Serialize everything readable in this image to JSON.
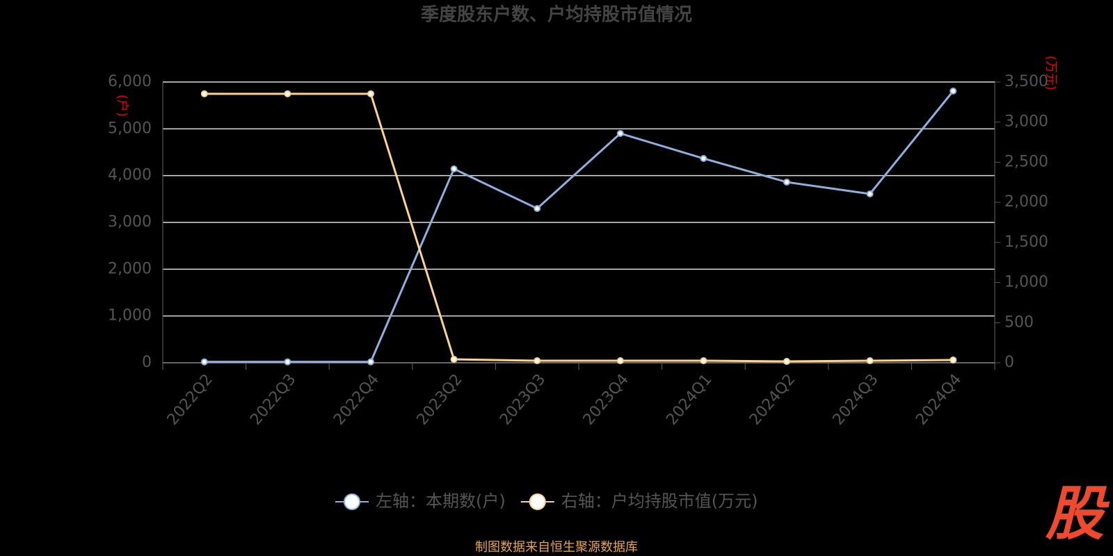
{
  "chart_data": {
    "type": "line",
    "title": "季度股东户数、户均持股市值情况",
    "y_label": "(户)",
    "y2_label": "(万元)",
    "categories": [
      "2022Q2",
      "2022Q3",
      "2022Q4",
      "2023Q2",
      "2023Q3",
      "2023Q4",
      "2024Q1",
      "2024Q2",
      "2024Q3",
      "2024Q4"
    ],
    "series": [
      {
        "name": "左轴：本期数(户)",
        "color": "#8eb0de",
        "axis": "y",
        "values": [
          20,
          20,
          20,
          4143,
          3297,
          4901,
          4366,
          3861,
          3609,
          5807
        ]
      },
      {
        "name": "右轴：户均持股市值(万元)",
        "color": "#fcd38d",
        "axis": "y2",
        "values": [
          3353,
          3353,
          3353,
          43,
          26,
          26,
          26,
          17,
          26,
          35
        ]
      }
    ],
    "ylim": [
      0,
      6000
    ],
    "yticks": [
      0,
      {
        "value": 1000,
        "label": "1,000"
      },
      {
        "value": 2000,
        "label": "2,000"
      },
      {
        "value": 3000,
        "label": "3,000"
      },
      {
        "value": 4000,
        "label": "4,000"
      },
      {
        "value": 5000,
        "label": "5,000"
      },
      {
        "value": 6000,
        "label": "6,000"
      }
    ],
    "y2lim": [
      0,
      3500
    ],
    "y2ticks": [
      0,
      500,
      {
        "value": 1000,
        "label": "1,000"
      },
      {
        "value": 1500,
        "label": "1,500"
      },
      {
        "value": 2000,
        "label": "2,000"
      },
      {
        "value": 2500,
        "label": "2,500"
      },
      {
        "value": 3000,
        "label": "3,000"
      },
      {
        "value": 3500,
        "label": "3,500"
      }
    ],
    "grid": true,
    "legend": "bottom",
    "source": "制图数据来自恒生聚源数据库",
    "logo": "股"
  }
}
